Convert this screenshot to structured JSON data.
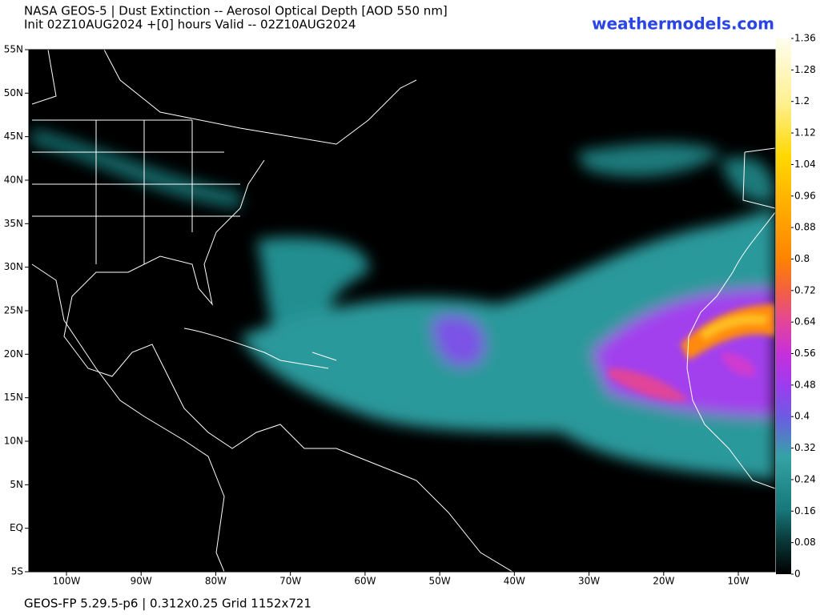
{
  "header": {
    "title": "NASA GEOS-5 | Dust Extinction -- Aerosol Optical Depth [AOD 550 nm]",
    "subtitle": "Init 02Z10AUG2024 +[0] hours Valid -- 02Z10AUG2024",
    "site": "weathermodels.com"
  },
  "map": {
    "lat_labels": [
      "55N",
      "50N",
      "45N",
      "40N",
      "35N",
      "30N",
      "25N",
      "20N",
      "15N",
      "10N",
      "5N",
      "EQ",
      "5S"
    ],
    "lon_labels": [
      "100W",
      "90W",
      "80W",
      "70W",
      "60W",
      "50W",
      "40W",
      "30W",
      "20W",
      "10W"
    ]
  },
  "colorbar": {
    "lim": [
      0,
      1.36
    ],
    "ticks": [
      0,
      0.08,
      0.16,
      0.24,
      0.32,
      0.4,
      0.48,
      0.56,
      0.64,
      0.72,
      0.8,
      0.88,
      0.96,
      1.04,
      1.12,
      1.2,
      1.28,
      1.36
    ]
  },
  "footer": "GEOS-FP 5.29.5-p6 | 0.312x0.25 Grid 1152x721"
}
